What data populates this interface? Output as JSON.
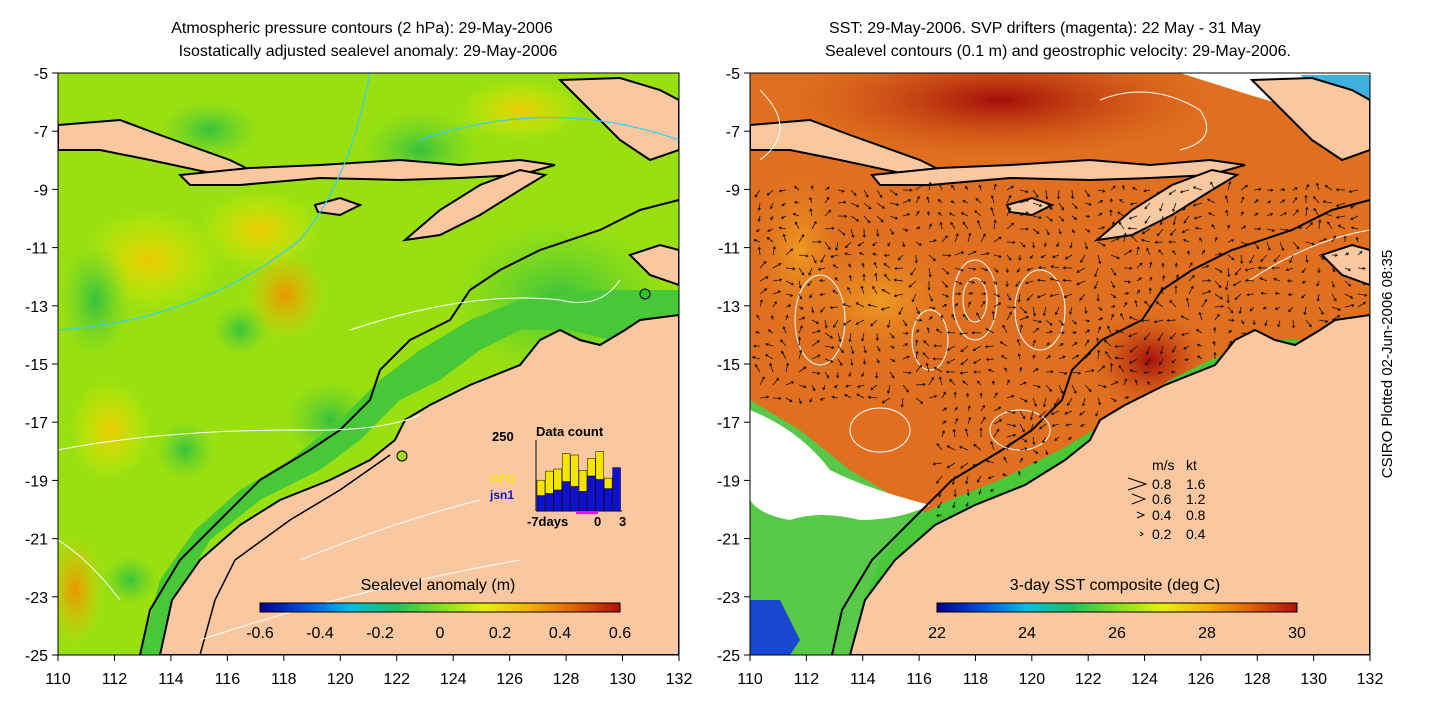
{
  "left_panel": {
    "title_line1": "Atmospheric pressure contours (2 hPa): 29-May-2006",
    "title_line2": "Isostatically adjusted sealevel anomaly: 29-May-2006",
    "colorbar": {
      "label": "Sealevel anomaly (m)",
      "ticks": [
        "-0.6",
        "-0.4",
        "-0.2",
        "0",
        "0.2",
        "0.4",
        "0.6"
      ],
      "stops": [
        "#00008b",
        "#0050e0",
        "#00c0e0",
        "#20c060",
        "#80e020",
        "#e8f000",
        "#f0b000",
        "#e06000",
        "#b01010"
      ]
    },
    "inset": {
      "title": "Data count",
      "y_max_label": "250",
      "legend": [
        {
          "label": "GFO",
          "color": "#f5e600"
        },
        {
          "label": "jsn1",
          "color": "#1010d0"
        }
      ],
      "x_labels": [
        "-7days",
        "0",
        "3"
      ],
      "bars_jsn1": [
        0.22,
        0.25,
        0.3,
        0.42,
        0.35,
        0.28,
        0.5,
        0.45,
        0.32,
        0.62
      ],
      "bars_gfo": [
        0.22,
        0.32,
        0.3,
        0.4,
        0.45,
        0.3,
        0.25,
        0.4,
        0.15,
        0.0
      ]
    }
  },
  "right_panel": {
    "title_line1": "SST: 29-May-2006. SVP drifters (magenta): 22 May - 31 May",
    "title_line2": "Sealevel contours (0.1 m) and geostrophic velocity: 29-May-2006.",
    "colorbar": {
      "label": "3-day SST composite (deg C)",
      "ticks": [
        "22",
        "24",
        "26",
        "28",
        "30"
      ],
      "stops": [
        "#00008b",
        "#0050e0",
        "#00c0e0",
        "#20c060",
        "#80e020",
        "#e8f000",
        "#f0b000",
        "#e06000",
        "#b01010"
      ]
    },
    "velocity_legend": {
      "headers": [
        "m/s",
        "kt"
      ],
      "rows": [
        {
          "ms": "0.8",
          "kt": "1.6"
        },
        {
          "ms": "0.6",
          "kt": "1.2"
        },
        {
          "ms": "0.4",
          "kt": "0.8"
        },
        {
          "ms": "0.2",
          "kt": "0.4"
        }
      ]
    }
  },
  "axes": {
    "x_ticks": [
      "110",
      "112",
      "114",
      "116",
      "118",
      "120",
      "122",
      "124",
      "126",
      "128",
      "130",
      "132"
    ],
    "y_ticks": [
      "-5",
      "-7",
      "-9",
      "-11",
      "-13",
      "-15",
      "-17",
      "-19",
      "-21",
      "-23",
      "-25"
    ]
  },
  "credit": "CSIRO Plotted 02-Jun-2006 08:35",
  "colors": {
    "land": "#fac8a0",
    "ocean_green": "#48d030",
    "sst_orange": "#e07020",
    "drifter": "#ff00ff",
    "altimeter_gfo": "#f5e600",
    "altimeter_jsn1": "#1010d0"
  }
}
